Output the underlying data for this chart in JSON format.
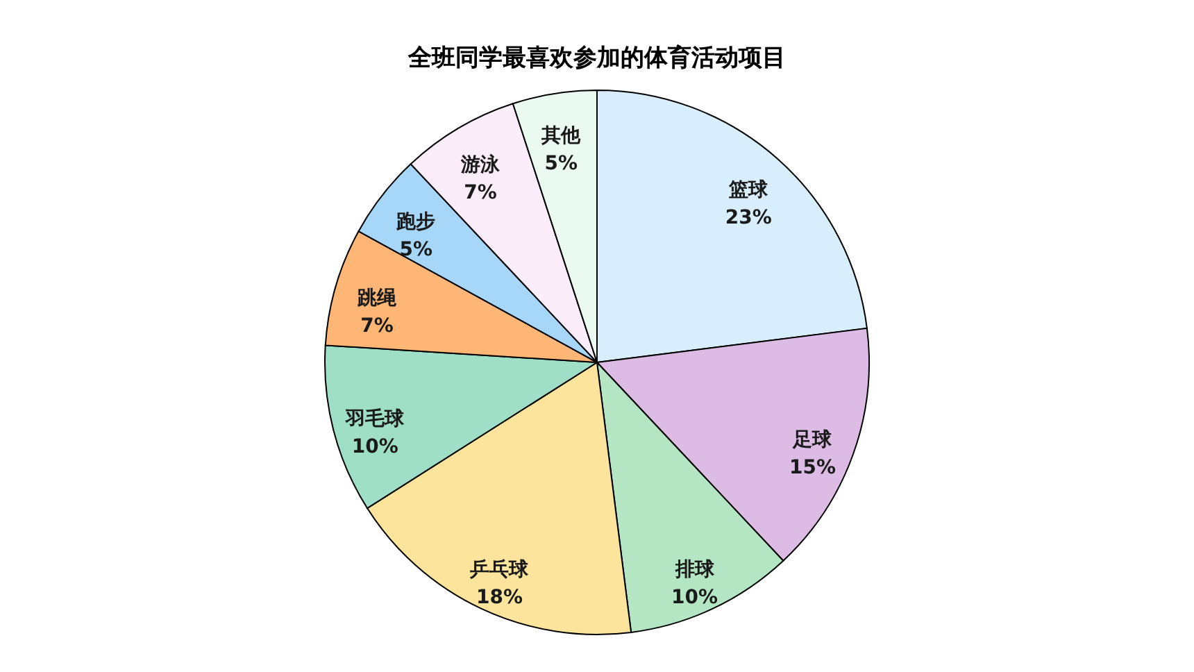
{
  "chart_data": {
    "type": "pie",
    "title": "全班同学最喜欢参加的体育活动项目",
    "categories": [
      "篮球",
      "足球",
      "排球",
      "乒乓球",
      "羽毛球",
      "跳绳",
      "跑步",
      "游泳",
      "其他"
    ],
    "values": [
      23,
      15,
      10,
      18,
      10,
      7,
      5,
      7,
      5
    ],
    "colors": [
      "#d9eefc",
      "#dcbce4",
      "#b4e6c4",
      "#fde49c",
      "#9fdfc8",
      "#fdb676",
      "#a6d6f8",
      "#fbeefa",
      "#eafaf0"
    ],
    "value_labels": [
      "23%",
      "15%",
      "10%",
      "18%",
      "10%",
      "7%",
      "5%",
      "7%",
      "5%"
    ]
  }
}
